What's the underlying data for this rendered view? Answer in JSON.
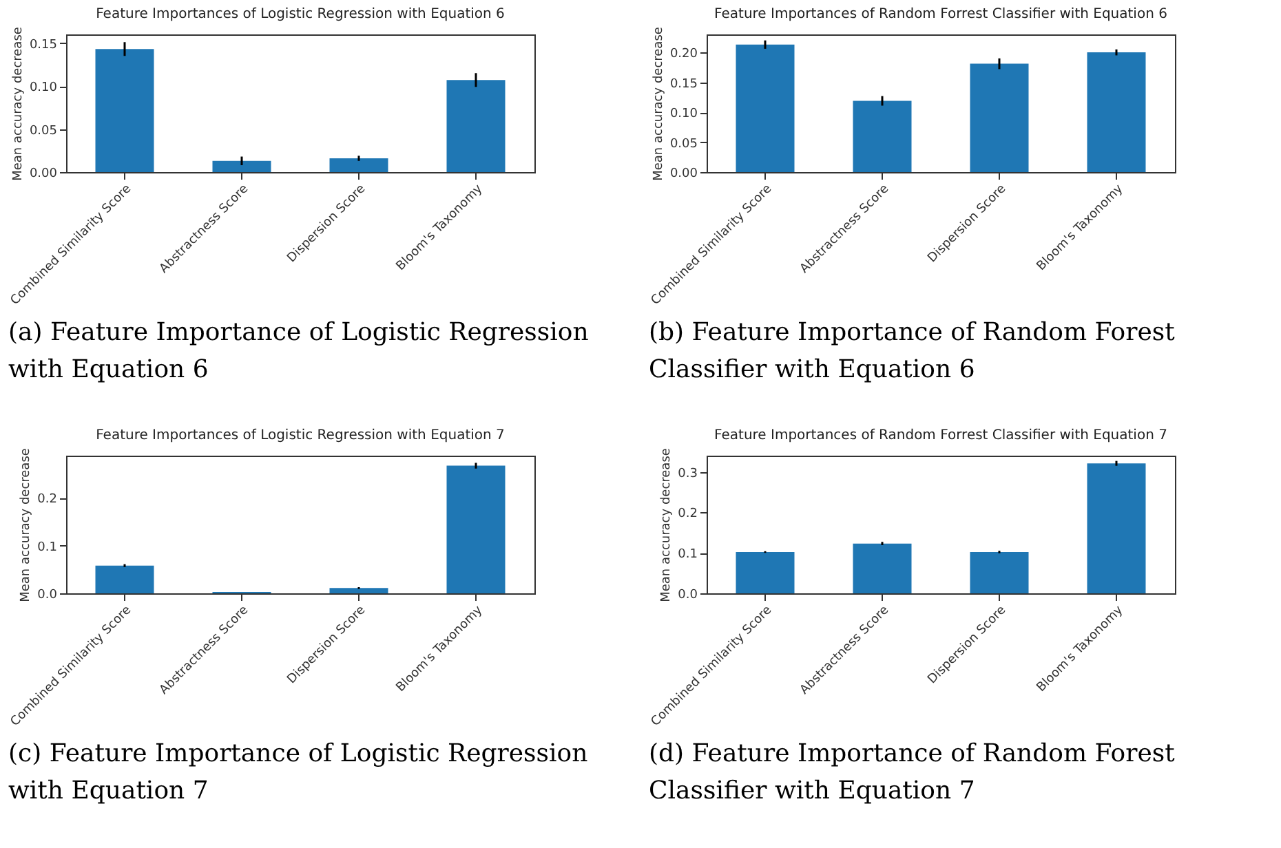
{
  "chart_data": [
    {
      "type": "bar",
      "title": "Feature Importances of Logistic Regression with Equation 6",
      "ylabel": "Mean accuracy decrease",
      "categories": [
        "Combined Similarity Score",
        "Abstractness Score",
        "Dispersion Score",
        "Bloom's Taxonomy"
      ],
      "values": [
        0.143,
        0.013,
        0.016,
        0.107
      ],
      "errors": [
        0.008,
        0.005,
        0.003,
        0.008
      ],
      "color": "#1f77b4",
      "ylim": [
        0,
        0.16
      ],
      "yticks": [
        {
          "value": 0,
          "label": "0.00"
        },
        {
          "value": 0.05,
          "label": "0.05"
        },
        {
          "value": 0.1,
          "label": "0.10"
        },
        {
          "value": 0.15,
          "label": "0.15"
        }
      ],
      "annotations": [
        "(a) Feature Importance of Logistic Regression with Equation 6"
      ]
    },
    {
      "type": "bar",
      "title": "Feature Importances of Random Forrest Classifier with Equation 6",
      "ylabel": "Mean accuracy decrease",
      "categories": [
        "Combined Similarity Score",
        "Abstractness Score",
        "Dispersion Score",
        "Bloom's Taxonomy"
      ],
      "values": [
        0.213,
        0.119,
        0.181,
        0.2
      ],
      "errors": [
        0.007,
        0.008,
        0.009,
        0.005
      ],
      "color": "#1f77b4",
      "ylim": [
        0,
        0.23
      ],
      "yticks": [
        {
          "value": 0,
          "label": "0.00"
        },
        {
          "value": 0.05,
          "label": "0.05"
        },
        {
          "value": 0.1,
          "label": "0.10"
        },
        {
          "value": 0.15,
          "label": "0.15"
        },
        {
          "value": 0.2,
          "label": "0.20"
        }
      ],
      "annotations": [
        "(b) Feature Importance of Random Forest Classifier with Equation 6"
      ]
    },
    {
      "type": "bar",
      "title": "Feature Importances of Logistic Regression with Equation 7",
      "ylabel": "Mean accuracy decrease",
      "categories": [
        "Combined Similarity Score",
        "Abstractness Score",
        "Dispersion Score",
        "Bloom's Taxonomy"
      ],
      "values": [
        0.058,
        0.003,
        0.011,
        0.267
      ],
      "errors": [
        0.003,
        null,
        0.002,
        0.006
      ],
      "color": "#1f77b4",
      "ylim": [
        0,
        0.288
      ],
      "yticks": [
        {
          "value": 0,
          "label": "0.0"
        },
        {
          "value": 0.1,
          "label": "0.1"
        },
        {
          "value": 0.2,
          "label": "0.2"
        }
      ],
      "annotations": [
        "(c) Feature Importance of Logistic Regression with Equation 7"
      ]
    },
    {
      "type": "bar",
      "title": "Feature Importances of Random Forrest Classifier with Equation 7",
      "ylabel": "Mean accuracy decrease",
      "categories": [
        "Combined Similarity Score",
        "Abstractness Score",
        "Dispersion Score",
        "Bloom's Taxonomy"
      ],
      "values": [
        0.102,
        0.123,
        0.102,
        0.321
      ],
      "errors": [
        0.002,
        0.004,
        0.003,
        0.006
      ],
      "color": "#1f77b4",
      "ylim": [
        0,
        0.34
      ],
      "yticks": [
        {
          "value": 0,
          "label": "0.0"
        },
        {
          "value": 0.1,
          "label": "0.1"
        },
        {
          "value": 0.2,
          "label": "0.2"
        },
        {
          "value": 0.3,
          "label": "0.3"
        }
      ],
      "annotations": [
        "(d) Feature Importance of Random Forest Classifier with Equation 7"
      ]
    }
  ]
}
